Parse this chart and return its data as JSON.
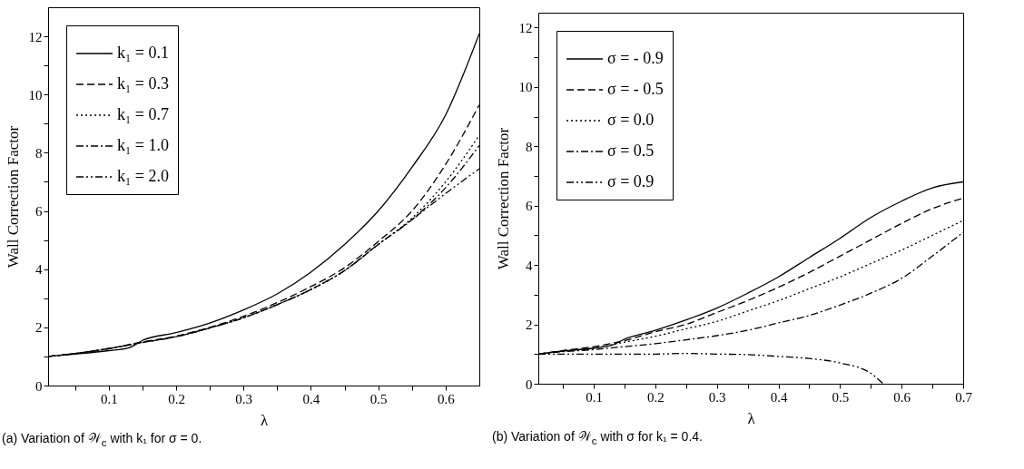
{
  "chart_data": [
    {
      "type": "line",
      "title": "(a) Variation of 𝒲$_{c}$ with k₁ for σ = 0.",
      "xlabel": "λ",
      "ylabel": "Wall Correction Factor",
      "xlim": [
        0.01,
        0.65
      ],
      "ylim": [
        0,
        13
      ],
      "xticks": [
        {
          "value": 0.05,
          "label": null
        },
        0.1,
        {
          "value": 0.15,
          "label": null
        },
        0.2,
        {
          "value": 0.25,
          "label": null
        },
        0.3,
        {
          "value": 0.35,
          "label": null
        },
        0.4,
        {
          "value": 0.45,
          "label": null
        },
        0.5,
        {
          "value": 0.55,
          "label": null
        },
        0.6
      ],
      "yticks": [
        0,
        {
          "value": 1,
          "label": null
        },
        2,
        {
          "value": 3,
          "label": null
        },
        4,
        {
          "value": 5,
          "label": null
        },
        6,
        {
          "value": 7,
          "label": null
        },
        8,
        {
          "value": 9,
          "label": null
        },
        10,
        {
          "value": 11,
          "label": null
        },
        12
      ],
      "legend": "top left",
      "series": [
        {
          "name": "k₁ = 0.1",
          "color": "#000000",
          "line_style": "solid",
          "x": [
            0.01,
            0.05,
            0.1,
            0.13,
            0.15,
            0.2,
            0.25,
            0.3,
            0.35,
            0.4,
            0.45,
            0.5,
            0.55,
            0.6,
            0.65
          ],
          "values": [
            1.0,
            1.08,
            1.2,
            1.3,
            1.55,
            1.82,
            2.15,
            2.6,
            3.15,
            3.9,
            4.85,
            6.0,
            7.5,
            9.3,
            12.1
          ]
        },
        {
          "name": "k₁ = 0.3",
          "color": "#000000",
          "line_style": "dashed",
          "x": [
            0.01,
            0.05,
            0.1,
            0.15,
            0.2,
            0.25,
            0.3,
            0.35,
            0.4,
            0.45,
            0.5,
            0.55,
            0.6,
            0.65
          ],
          "values": [
            1.0,
            1.1,
            1.27,
            1.5,
            1.7,
            2.0,
            2.38,
            2.85,
            3.4,
            4.05,
            4.95,
            6.0,
            7.6,
            9.65
          ]
        },
        {
          "name": "k₁ = 0.7",
          "color": "#000000",
          "line_style": "dotted",
          "x": [
            0.01,
            0.05,
            0.1,
            0.15,
            0.2,
            0.25,
            0.3,
            0.35,
            0.4,
            0.45,
            0.5,
            0.55,
            0.6,
            0.65
          ],
          "values": [
            1.0,
            1.1,
            1.27,
            1.48,
            1.68,
            1.98,
            2.33,
            2.78,
            3.3,
            3.95,
            4.85,
            5.75,
            7.0,
            8.6
          ]
        },
        {
          "name": "k₁ = 1.0",
          "color": "#000000",
          "line_style": "dashdot",
          "x": [
            0.01,
            0.05,
            0.1,
            0.15,
            0.2,
            0.25,
            0.3,
            0.35,
            0.4,
            0.45,
            0.5,
            0.55,
            0.6,
            0.65
          ],
          "values": [
            1.0,
            1.1,
            1.27,
            1.48,
            1.68,
            1.98,
            2.33,
            2.78,
            3.3,
            3.95,
            4.85,
            5.7,
            6.8,
            8.25
          ]
        },
        {
          "name": "k₁ = 2.0",
          "color": "#000000",
          "line_style": "dashdotdot",
          "x": [
            0.01,
            0.05,
            0.1,
            0.15,
            0.2,
            0.25,
            0.3,
            0.35,
            0.4,
            0.45,
            0.5,
            0.55,
            0.6,
            0.65
          ],
          "values": [
            1.0,
            1.1,
            1.27,
            1.48,
            1.68,
            1.98,
            2.33,
            2.78,
            3.3,
            3.95,
            4.85,
            5.7,
            6.6,
            7.45
          ]
        }
      ]
    },
    {
      "type": "line",
      "title": "(b) Variation of 𝒲$_{c}$ with σ for k₁ = 0.4.",
      "xlabel": "λ",
      "ylabel": "Wall Correction Factor",
      "xlim": [
        0.01,
        0.7
      ],
      "ylim": [
        0,
        12.5
      ],
      "xticks": [
        {
          "value": 0.05,
          "label": null
        },
        0.1,
        {
          "value": 0.15,
          "label": null
        },
        0.2,
        {
          "value": 0.25,
          "label": null
        },
        0.3,
        {
          "value": 0.35,
          "label": null
        },
        0.4,
        {
          "value": 0.45,
          "label": null
        },
        0.5,
        {
          "value": 0.55,
          "label": null
        },
        0.6,
        {
          "value": 0.65,
          "label": null
        },
        0.7
      ],
      "yticks": [
        0,
        {
          "value": 1,
          "label": null
        },
        2,
        {
          "value": 3,
          "label": null
        },
        4,
        {
          "value": 5,
          "label": null
        },
        6,
        {
          "value": 7,
          "label": null
        },
        8,
        {
          "value": 9,
          "label": null
        },
        10,
        {
          "value": 11,
          "label": null
        },
        12
      ],
      "legend": "top left",
      "series": [
        {
          "name": "σ = - 0.9",
          "color": "#000000",
          "line_style": "solid",
          "x": [
            0.01,
            0.05,
            0.1,
            0.13,
            0.15,
            0.2,
            0.25,
            0.3,
            0.35,
            0.4,
            0.45,
            0.5,
            0.55,
            0.6,
            0.65,
            0.7
          ],
          "values": [
            1.0,
            1.1,
            1.2,
            1.3,
            1.5,
            1.8,
            2.15,
            2.55,
            3.05,
            3.6,
            4.25,
            4.9,
            5.6,
            6.15,
            6.6,
            6.8
          ]
        },
        {
          "name": "σ = - 0.5",
          "color": "#000000",
          "line_style": "dashed",
          "x": [
            0.01,
            0.05,
            0.1,
            0.15,
            0.2,
            0.25,
            0.3,
            0.35,
            0.4,
            0.45,
            0.5,
            0.55,
            0.6,
            0.65,
            0.7
          ],
          "values": [
            1.0,
            1.12,
            1.25,
            1.45,
            1.75,
            2.0,
            2.4,
            2.8,
            3.25,
            3.75,
            4.3,
            4.85,
            5.4,
            5.9,
            6.25
          ]
        },
        {
          "name": "σ = 0.0",
          "color": "#000000",
          "line_style": "dotted",
          "x": [
            0.01,
            0.05,
            0.1,
            0.15,
            0.2,
            0.25,
            0.3,
            0.35,
            0.4,
            0.45,
            0.5,
            0.55,
            0.6,
            0.65,
            0.7
          ],
          "values": [
            1.0,
            1.1,
            1.2,
            1.4,
            1.6,
            1.85,
            2.1,
            2.45,
            2.8,
            3.2,
            3.6,
            4.05,
            4.5,
            5.0,
            5.5
          ]
        },
        {
          "name": "σ = 0.5",
          "color": "#000000",
          "line_style": "dashdot",
          "x": [
            0.01,
            0.05,
            0.1,
            0.15,
            0.2,
            0.25,
            0.3,
            0.35,
            0.4,
            0.45,
            0.5,
            0.55,
            0.6,
            0.65,
            0.7
          ],
          "values": [
            1.0,
            1.08,
            1.15,
            1.25,
            1.35,
            1.48,
            1.62,
            1.8,
            2.05,
            2.3,
            2.65,
            3.05,
            3.55,
            4.3,
            5.1
          ]
        },
        {
          "name": "σ = 0.9",
          "color": "#000000",
          "line_style": "dashdotdot",
          "x": [
            0.01,
            0.1,
            0.2,
            0.25,
            0.3,
            0.35,
            0.4,
            0.45,
            0.5,
            0.55,
            0.57
          ],
          "values": [
            1.0,
            1.0,
            1.0,
            1.02,
            1.0,
            0.98,
            0.92,
            0.85,
            0.7,
            0.35,
            0.0
          ]
        }
      ]
    }
  ]
}
